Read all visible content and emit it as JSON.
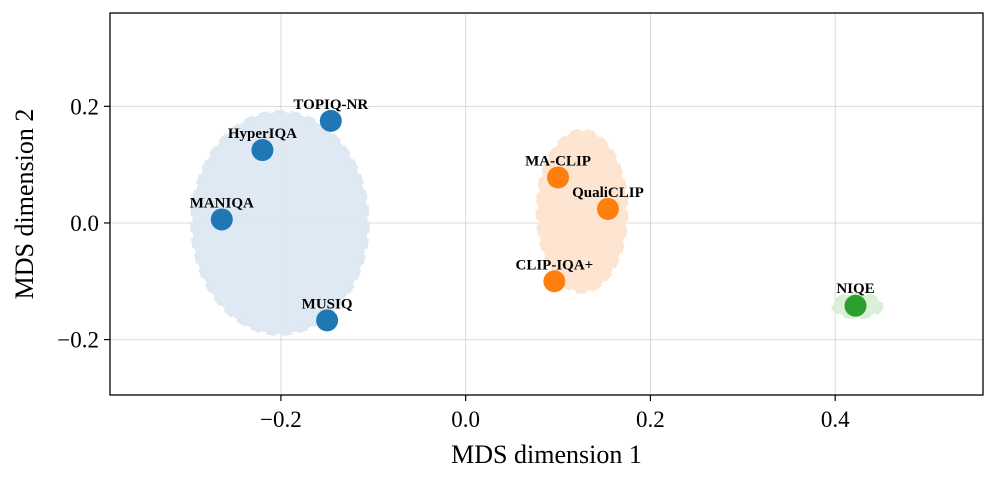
{
  "chart_data": {
    "type": "scatter",
    "title": "",
    "xlabel": "MDS dimension 1",
    "ylabel": "MDS dimension 2",
    "xlim": [
      -0.385,
      0.56
    ],
    "ylim": [
      -0.295,
      0.36
    ],
    "grid": true,
    "xticks": [
      -0.2,
      0.0,
      0.2,
      0.4
    ],
    "xtick_labels": [
      "−0.2",
      "0.0",
      "0.2",
      "0.4"
    ],
    "yticks": [
      -0.2,
      0.0,
      0.2
    ],
    "ytick_labels": [
      "−0.2",
      "0.0",
      "0.2"
    ],
    "clusters": [
      {
        "name": "cluster-1",
        "color": "#1f77b4",
        "fill": "#dde8f3",
        "ellipse": {
          "cx": -0.201,
          "cy": 0.0,
          "rx": 0.095,
          "ry": 0.19
        },
        "points": [
          {
            "label": "TOPIQ-NR",
            "x": -0.146,
            "y": 0.175
          },
          {
            "label": "HyperIQA",
            "x": -0.22,
            "y": 0.125
          },
          {
            "label": "MANIQA",
            "x": -0.264,
            "y": 0.006
          },
          {
            "label": "MUSIQ",
            "x": -0.15,
            "y": -0.167
          }
        ]
      },
      {
        "name": "cluster-2",
        "color": "#ff7f0e",
        "fill": "#fde4cf",
        "ellipse": {
          "cx": 0.126,
          "cy": 0.02,
          "rx": 0.048,
          "ry": 0.138
        },
        "points": [
          {
            "label": "MA-CLIP",
            "x": 0.1,
            "y": 0.078
          },
          {
            "label": "QualiCLIP",
            "x": 0.154,
            "y": 0.024
          },
          {
            "label": "CLIP-IQA+",
            "x": 0.096,
            "y": -0.1
          }
        ]
      },
      {
        "name": "cluster-3",
        "color": "#2ca02c",
        "fill": "#d9efd5",
        "ellipse": {
          "cx": 0.424,
          "cy": -0.142,
          "rx": 0.026,
          "ry": 0.02
        },
        "points": [
          {
            "label": "NIQE",
            "x": 0.422,
            "y": -0.142
          }
        ]
      }
    ]
  }
}
